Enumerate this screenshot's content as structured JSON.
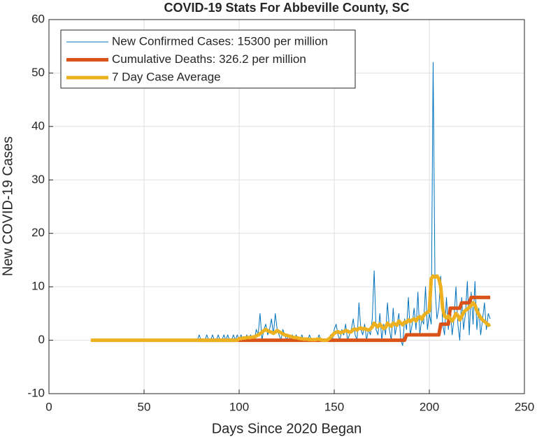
{
  "chart_data": {
    "type": "line",
    "title": "COVID-19 Stats For Abbeville County, SC",
    "xlabel": "Days Since 2020 Began",
    "ylabel": "New COVID-19 Cases",
    "xlim": [
      0,
      250
    ],
    "xticks": [
      0,
      50,
      100,
      150,
      200,
      250
    ],
    "ylim": [
      -10,
      60
    ],
    "yticks": [
      -10,
      0,
      10,
      20,
      30,
      40,
      50,
      60
    ],
    "grid": true,
    "legend": "upper left",
    "x": [
      22,
      23,
      24,
      25,
      26,
      27,
      28,
      29,
      30,
      31,
      32,
      33,
      34,
      35,
      36,
      37,
      38,
      39,
      40,
      41,
      42,
      43,
      44,
      45,
      46,
      47,
      48,
      49,
      50,
      51,
      52,
      53,
      54,
      55,
      56,
      57,
      58,
      59,
      60,
      61,
      62,
      63,
      64,
      65,
      66,
      67,
      68,
      69,
      70,
      71,
      72,
      73,
      74,
      75,
      76,
      77,
      78,
      79,
      80,
      81,
      82,
      83,
      84,
      85,
      86,
      87,
      88,
      89,
      90,
      91,
      92,
      93,
      94,
      95,
      96,
      97,
      98,
      99,
      100,
      101,
      102,
      103,
      104,
      105,
      106,
      107,
      108,
      109,
      110,
      111,
      112,
      113,
      114,
      115,
      116,
      117,
      118,
      119,
      120,
      121,
      122,
      123,
      124,
      125,
      126,
      127,
      128,
      129,
      130,
      131,
      132,
      133,
      134,
      135,
      136,
      137,
      138,
      139,
      140,
      141,
      142,
      143,
      144,
      145,
      146,
      147,
      148,
      149,
      150,
      151,
      152,
      153,
      154,
      155,
      156,
      157,
      158,
      159,
      160,
      161,
      162,
      163,
      164,
      165,
      166,
      167,
      168,
      169,
      170,
      171,
      172,
      173,
      174,
      175,
      176,
      177,
      178,
      179,
      180,
      181,
      182,
      183,
      184,
      185,
      186,
      187,
      188,
      189,
      190,
      191,
      192,
      193,
      194,
      195,
      196,
      197,
      198,
      199,
      200,
      201,
      202,
      203,
      204,
      205,
      206,
      207,
      208,
      209,
      210,
      211,
      212,
      213,
      214,
      215,
      216,
      217,
      218,
      219,
      220,
      221,
      222,
      223,
      224,
      225,
      226,
      227,
      228,
      229,
      230,
      231,
      232
    ],
    "series": [
      {
        "name": "New Confirmed Cases: 15300 per million",
        "color": "#0072BD",
        "width": 1,
        "values": [
          null,
          null,
          null,
          null,
          null,
          null,
          null,
          null,
          null,
          null,
          null,
          null,
          null,
          null,
          null,
          null,
          null,
          null,
          null,
          null,
          null,
          null,
          null,
          null,
          null,
          null,
          null,
          null,
          null,
          null,
          null,
          null,
          null,
          null,
          null,
          null,
          null,
          null,
          null,
          null,
          null,
          null,
          null,
          null,
          null,
          null,
          null,
          null,
          null,
          null,
          null,
          null,
          null,
          null,
          null,
          null,
          0,
          1,
          0,
          0,
          0,
          1,
          0,
          0,
          1,
          0,
          0,
          1,
          0,
          0,
          1,
          0,
          1,
          0,
          0,
          1,
          0,
          1,
          0,
          1,
          0,
          0,
          1,
          0,
          1,
          0,
          0,
          2,
          1,
          5,
          0,
          2,
          3,
          1,
          2,
          4,
          1,
          5,
          2,
          1,
          0,
          2,
          1,
          0,
          1,
          0,
          1,
          0,
          1,
          0,
          0,
          1,
          0,
          0,
          0,
          1,
          0,
          0,
          0,
          0,
          1,
          0,
          0,
          0,
          0,
          0,
          1,
          0,
          2,
          3,
          1,
          0,
          2,
          1,
          3,
          0,
          1,
          2,
          4,
          1,
          0,
          7,
          2,
          1,
          3,
          0,
          2,
          1,
          4,
          13,
          2,
          1,
          5,
          0,
          3,
          1,
          7,
          2,
          0,
          6,
          1,
          3,
          5,
          0,
          -1,
          4,
          2,
          8,
          1,
          3,
          6,
          2,
          9,
          1,
          4,
          3,
          10,
          2,
          5,
          3,
          52,
          10,
          4,
          6,
          12,
          3,
          1,
          8,
          2,
          6,
          1,
          4,
          10,
          3,
          0,
          8,
          2,
          5,
          11,
          1,
          9,
          3,
          11,
          2,
          6,
          1,
          4,
          7,
          2,
          5,
          4
        ]
      },
      {
        "name": "Cumulative Deaths: 326.2 per million",
        "color": "#D95319",
        "width": 5,
        "values": [
          null,
          null,
          null,
          null,
          null,
          null,
          null,
          null,
          null,
          null,
          null,
          null,
          null,
          null,
          null,
          null,
          null,
          null,
          null,
          null,
          null,
          null,
          null,
          null,
          null,
          null,
          null,
          null,
          null,
          null,
          null,
          null,
          null,
          null,
          null,
          null,
          null,
          null,
          null,
          null,
          null,
          null,
          null,
          null,
          null,
          null,
          null,
          null,
          null,
          null,
          null,
          null,
          null,
          null,
          null,
          null,
          0,
          0,
          0,
          0,
          0,
          0,
          0,
          0,
          0,
          0,
          0,
          0,
          0,
          0,
          0,
          0,
          0,
          0,
          0,
          0,
          0,
          0,
          0,
          0,
          0,
          0,
          0,
          0,
          0,
          0,
          0,
          0,
          0,
          0,
          0,
          0,
          0,
          0,
          0,
          0,
          0,
          0,
          0,
          0,
          0,
          0,
          0,
          0,
          0,
          0,
          0,
          0,
          0,
          0,
          0,
          0,
          0,
          0,
          0,
          0,
          0,
          0,
          0,
          0,
          0,
          0,
          0,
          0,
          0,
          0,
          0,
          0,
          0,
          0,
          0,
          0,
          0,
          0,
          0,
          0,
          0,
          0,
          0,
          0,
          0,
          0,
          0,
          0,
          0,
          0,
          0,
          0,
          0,
          0,
          0,
          0,
          0,
          0,
          0,
          0,
          0,
          0,
          0,
          0,
          0,
          0,
          0,
          0,
          0,
          0,
          1,
          1,
          1,
          1,
          1,
          1,
          1,
          1,
          1,
          1,
          1,
          1,
          1,
          1,
          1,
          1,
          1,
          1,
          3,
          3,
          3,
          3,
          3,
          6,
          6,
          6,
          6,
          6,
          6,
          7,
          7,
          7,
          7,
          7,
          8,
          8,
          8,
          8,
          8,
          8,
          8,
          8,
          8,
          8,
          8
        ]
      },
      {
        "name": "7 Day Case Average",
        "color": "#EDB120",
        "width": 5,
        "values": [
          0,
          0,
          0,
          0,
          0,
          0,
          0,
          0,
          0,
          0,
          0,
          0,
          0,
          0,
          0,
          0,
          0,
          0,
          0,
          0,
          0,
          0,
          0,
          0,
          0,
          0,
          0,
          0,
          0,
          0,
          0,
          0,
          0,
          0,
          0,
          0,
          0,
          0,
          0,
          0,
          0,
          0,
          0,
          0,
          0,
          0,
          0,
          0,
          0,
          0,
          0,
          0,
          0,
          0,
          0,
          0,
          0,
          0,
          0,
          0,
          0,
          0,
          0,
          0,
          0,
          0,
          0,
          0,
          0,
          0,
          0,
          0,
          0,
          0,
          0,
          0,
          0,
          0,
          0.3,
          0.3,
          0.4,
          0.4,
          0.5,
          0.5,
          0.5,
          0.6,
          0.6,
          0.8,
          1,
          1.2,
          1.5,
          1.8,
          2,
          1.8,
          1.6,
          1.5,
          1.3,
          1.5,
          1.8,
          1.6,
          1.4,
          1.2,
          1,
          0.9,
          0.8,
          0.7,
          0.6,
          0.5,
          0.5,
          0.4,
          0.3,
          0.3,
          0.2,
          0.2,
          0.2,
          0.1,
          0.1,
          0.1,
          0.1,
          0.2,
          0.2,
          0.1,
          0,
          0,
          0,
          0.2,
          0.5,
          0.9,
          1.3,
          1.5,
          1.6,
          1.4,
          1.5,
          1.6,
          1.8,
          1.7,
          1.5,
          1.6,
          2,
          2.1,
          1.9,
          2.2,
          2.3,
          2.1,
          2.2,
          2,
          1.9,
          2.1,
          2.5,
          3.2,
          2.8,
          2.5,
          3,
          2.6,
          2.2,
          2.4,
          3.2,
          2.8,
          2.6,
          3.2,
          3,
          2.8,
          3.6,
          3.2,
          2.9,
          3.4,
          3.3,
          3.8,
          3.5,
          3.8,
          4,
          3.6,
          4.2,
          4.4,
          3.9,
          4.6,
          5,
          5.2,
          5.5,
          11.5,
          12,
          11.8,
          12,
          11.5,
          10,
          6,
          4.5,
          4.2,
          4.5,
          4,
          3.6,
          4.2,
          5,
          4.6,
          3.8,
          4.5,
          5.2,
          5.6,
          5.8,
          6.2,
          6.5,
          7,
          6.6,
          5.5,
          4.8,
          4.2,
          3.8,
          3.5,
          3.2,
          2.8,
          3
        ]
      }
    ]
  }
}
